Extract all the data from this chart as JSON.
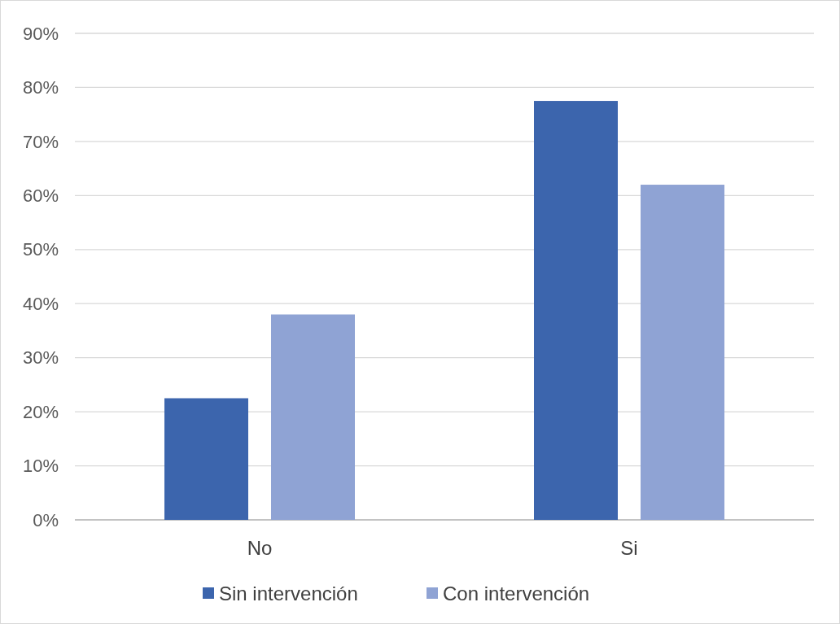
{
  "chart_data": {
    "type": "bar",
    "categories": [
      "No",
      "Si"
    ],
    "series": [
      {
        "name": "Sin intervención",
        "color": "#3c65ad",
        "values": [
          22.5,
          77.5
        ]
      },
      {
        "name": "Con intervención",
        "color": "#8fa3d4",
        "values": [
          38,
          62
        ]
      }
    ],
    "ylim": [
      0,
      90
    ],
    "yticks": [
      {
        "value": 0,
        "label": "0%"
      },
      {
        "value": 10,
        "label": "10%"
      },
      {
        "value": 20,
        "label": "20%"
      },
      {
        "value": 30,
        "label": "30%"
      },
      {
        "value": 40,
        "label": "40%"
      },
      {
        "value": 50,
        "label": "50%"
      },
      {
        "value": 60,
        "label": "60%"
      },
      {
        "value": 70,
        "label": "70%"
      },
      {
        "value": 80,
        "label": "80%"
      },
      {
        "value": 90,
        "label": "90%"
      }
    ],
    "grid": "y",
    "legend": "bottom"
  }
}
